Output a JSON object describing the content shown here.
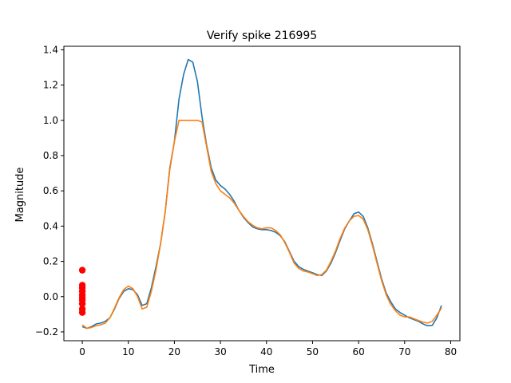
{
  "chart_data": {
    "type": "line",
    "title": "Verify spike 216995",
    "xlabel": "Time",
    "ylabel": "Magnitude",
    "xlim": [
      -4,
      82
    ],
    "ylim": [
      -0.25,
      1.42
    ],
    "xticks": [
      0,
      10,
      20,
      30,
      40,
      50,
      60,
      70,
      80
    ],
    "yticks": [
      -0.2,
      0.0,
      0.2,
      0.4,
      0.6,
      0.8,
      1.0,
      1.2,
      1.4
    ],
    "grid": false,
    "colors": {
      "series_blue": "#1f77b4",
      "series_orange": "#ff7f0e",
      "markers": "#ff0000"
    },
    "series": [
      {
        "color": "#1f77b4",
        "x": [
          0,
          1,
          2,
          3,
          4,
          5,
          6,
          7,
          8,
          9,
          10,
          11,
          12,
          13,
          14,
          15,
          16,
          17,
          18,
          19,
          20,
          21,
          22,
          23,
          24,
          25,
          26,
          27,
          28,
          29,
          30,
          31,
          32,
          33,
          34,
          35,
          36,
          37,
          38,
          39,
          40,
          41,
          42,
          43,
          44,
          45,
          46,
          47,
          48,
          49,
          50,
          51,
          52,
          53,
          54,
          55,
          56,
          57,
          58,
          59,
          60,
          61,
          62,
          63,
          64,
          65,
          66,
          67,
          68,
          69,
          70,
          71,
          72,
          73,
          74,
          75,
          76,
          77,
          78
        ],
        "y": [
          -0.17,
          -0.18,
          -0.17,
          -0.155,
          -0.15,
          -0.14,
          -0.12,
          -0.07,
          -0.01,
          0.03,
          0.045,
          0.04,
          0.01,
          -0.05,
          -0.04,
          0.05,
          0.17,
          0.3,
          0.48,
          0.73,
          0.88,
          1.12,
          1.26,
          1.345,
          1.33,
          1.22,
          1.02,
          0.86,
          0.73,
          0.66,
          0.63,
          0.61,
          0.58,
          0.54,
          0.49,
          0.45,
          0.42,
          0.395,
          0.385,
          0.38,
          0.38,
          0.375,
          0.365,
          0.345,
          0.31,
          0.255,
          0.2,
          0.17,
          0.155,
          0.145,
          0.135,
          0.125,
          0.12,
          0.145,
          0.19,
          0.25,
          0.32,
          0.385,
          0.43,
          0.47,
          0.48,
          0.455,
          0.39,
          0.3,
          0.2,
          0.1,
          0.02,
          -0.03,
          -0.07,
          -0.09,
          -0.105,
          -0.12,
          -0.13,
          -0.14,
          -0.155,
          -0.165,
          -0.163,
          -0.12,
          -0.05
        ]
      },
      {
        "color": "#ff7f0e",
        "x": [
          0,
          1,
          2,
          3,
          4,
          5,
          6,
          7,
          8,
          9,
          10,
          11,
          12,
          13,
          14,
          15,
          16,
          17,
          18,
          19,
          20,
          21,
          22,
          23,
          24,
          25,
          26,
          27,
          28,
          29,
          30,
          31,
          32,
          33,
          34,
          35,
          36,
          37,
          38,
          39,
          40,
          41,
          42,
          43,
          44,
          45,
          46,
          47,
          48,
          49,
          50,
          51,
          52,
          53,
          54,
          55,
          56,
          57,
          58,
          59,
          60,
          61,
          62,
          63,
          64,
          65,
          66,
          67,
          68,
          69,
          70,
          71,
          72,
          73,
          74,
          75,
          76,
          77,
          78
        ],
        "y": [
          -0.16,
          -0.18,
          -0.175,
          -0.165,
          -0.16,
          -0.15,
          -0.12,
          -0.065,
          -0.005,
          0.04,
          0.06,
          0.045,
          0.0,
          -0.07,
          -0.06,
          0.03,
          0.15,
          0.3,
          0.48,
          0.72,
          0.88,
          1.0,
          1.0,
          1.0,
          1.0,
          1.0,
          0.99,
          0.85,
          0.71,
          0.64,
          0.6,
          0.58,
          0.56,
          0.53,
          0.49,
          0.455,
          0.425,
          0.405,
          0.39,
          0.385,
          0.39,
          0.39,
          0.375,
          0.35,
          0.305,
          0.25,
          0.19,
          0.16,
          0.145,
          0.14,
          0.13,
          0.12,
          0.125,
          0.15,
          0.2,
          0.26,
          0.33,
          0.39,
          0.43,
          0.455,
          0.46,
          0.44,
          0.38,
          0.29,
          0.19,
          0.09,
          0.01,
          -0.045,
          -0.08,
          -0.105,
          -0.115,
          -0.115,
          -0.125,
          -0.135,
          -0.145,
          -0.15,
          -0.14,
          -0.105,
          -0.065
        ]
      }
    ],
    "markers": {
      "color": "#ff0000",
      "x": [
        0,
        0,
        0,
        0,
        0,
        0,
        0,
        0,
        0,
        0
      ],
      "y": [
        0.15,
        0.065,
        0.05,
        0.03,
        0.01,
        -0.005,
        -0.02,
        -0.04,
        -0.07,
        -0.09
      ]
    }
  }
}
